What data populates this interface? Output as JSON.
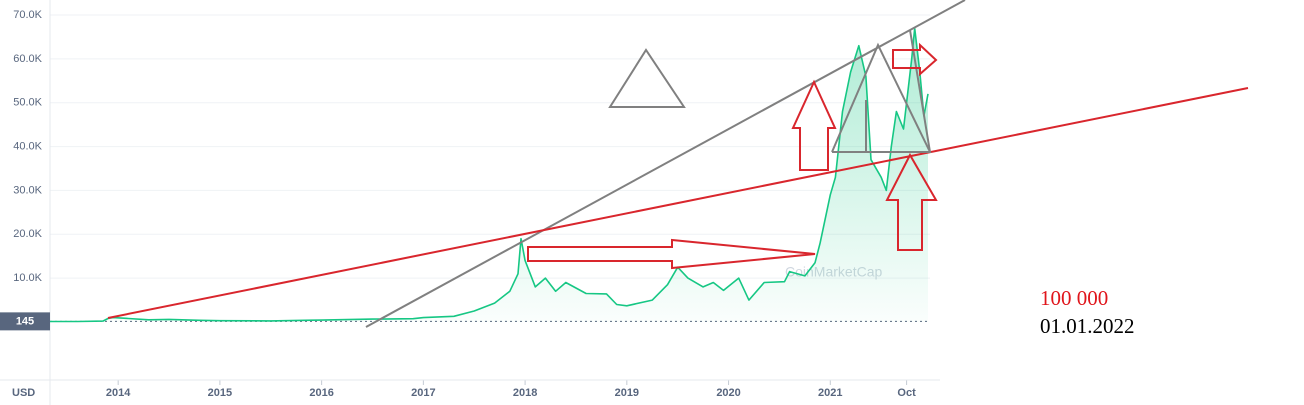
{
  "chart_data": {
    "type": "line",
    "color": "#16c784",
    "currency_label": "USD",
    "watermark": "CoinMarketCap",
    "price_marker": 145,
    "annotations": [
      "100 000",
      "01.01.2022"
    ],
    "x": [
      2013.33,
      2013.6,
      2013.85,
      2013.9,
      2013.95,
      2014.1,
      2014.3,
      2014.5,
      2014.8,
      2015.0,
      2015.5,
      2015.9,
      2016.0,
      2016.5,
      2016.9,
      2017.0,
      2017.3,
      2017.5,
      2017.7,
      2017.85,
      2017.93,
      2017.96,
      2018.0,
      2018.1,
      2018.2,
      2018.3,
      2018.4,
      2018.6,
      2018.8,
      2018.9,
      2019.0,
      2019.25,
      2019.4,
      2019.5,
      2019.6,
      2019.75,
      2019.85,
      2019.95,
      2020.1,
      2020.2,
      2020.35,
      2020.55,
      2020.6,
      2020.75,
      2020.85,
      2020.9,
      2021.0,
      2021.05,
      2021.12,
      2021.2,
      2021.28,
      2021.35,
      2021.4,
      2021.5,
      2021.55,
      2021.6,
      2021.65,
      2021.72,
      2021.8,
      2021.83,
      2021.88,
      2021.92,
      2021.96
    ],
    "values": [
      120,
      120,
      200,
      800,
      1000,
      800,
      500,
      600,
      380,
      300,
      250,
      400,
      430,
      650,
      750,
      1000,
      1300,
      2500,
      4300,
      7000,
      11000,
      19000,
      14000,
      8000,
      10000,
      7000,
      9000,
      6500,
      6400,
      4000,
      3700,
      5000,
      8500,
      12500,
      10000,
      8000,
      9000,
      7200,
      10000,
      5000,
      9000,
      9200,
      11500,
      10500,
      13500,
      18000,
      29000,
      33000,
      48000,
      57000,
      63000,
      56000,
      37000,
      33000,
      30000,
      40000,
      48000,
      44000,
      60000,
      67000,
      57000,
      47000,
      52000
    ],
    "xlim": [
      2013.33,
      2021.98
    ],
    "ylim": [
      0,
      70000
    ],
    "xticks": [
      2014,
      2015,
      2016,
      2017,
      2018,
      2019,
      2020,
      2021,
      {
        "value": 2021.75,
        "label": "Oct"
      }
    ],
    "yticks": [
      {
        "value": 10000,
        "label": "10.0K"
      },
      {
        "value": 20000,
        "label": "20.0K"
      },
      {
        "value": 30000,
        "label": "30.0K"
      },
      {
        "value": 40000,
        "label": "40.0K"
      },
      {
        "value": 50000,
        "label": "50.0K"
      },
      {
        "value": 60000,
        "label": "60.0K"
      },
      {
        "value": 70000,
        "label": "70.0K"
      }
    ],
    "grid": true
  }
}
